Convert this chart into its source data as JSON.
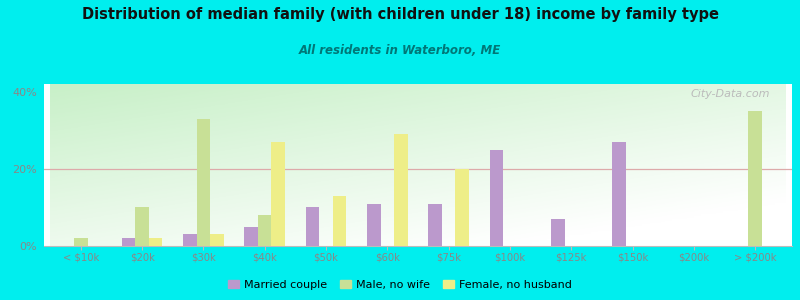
{
  "title": "Distribution of median family (with children under 18) income by family type",
  "subtitle": "All residents in Waterboro, ME",
  "categories": [
    "< $10k",
    "$20k",
    "$30k",
    "$40k",
    "$50k",
    "$60k",
    "$75k",
    "$100k",
    "$125k",
    "$150k",
    "$200k",
    "> $200k"
  ],
  "married_couple": [
    0,
    2,
    3,
    5,
    10,
    11,
    11,
    25,
    7,
    27,
    0,
    0
  ],
  "male_no_wife": [
    2,
    10,
    33,
    8,
    0,
    0,
    0,
    0,
    0,
    0,
    0,
    35
  ],
  "female_no_husband": [
    0,
    2,
    3,
    27,
    13,
    29,
    20,
    0,
    0,
    0,
    0,
    0
  ],
  "bar_width": 0.22,
  "ylim": [
    0,
    42
  ],
  "yticks": [
    0,
    20,
    40
  ],
  "ytick_labels": [
    "0%",
    "20%",
    "40%"
  ],
  "married_color": "#bb99cc",
  "male_color": "#c8e096",
  "female_color": "#eeee88",
  "bg_top_color": "#ffffff",
  "bg_bottom_color": "#c8e8c0",
  "outer_bg": "#00eeee",
  "grid_color": "#ddaaaa",
  "title_color": "#111111",
  "subtitle_color": "#007777",
  "watermark": "City-Data.com",
  "axis_label_color": "#888888",
  "tick_label_color": "#888888"
}
